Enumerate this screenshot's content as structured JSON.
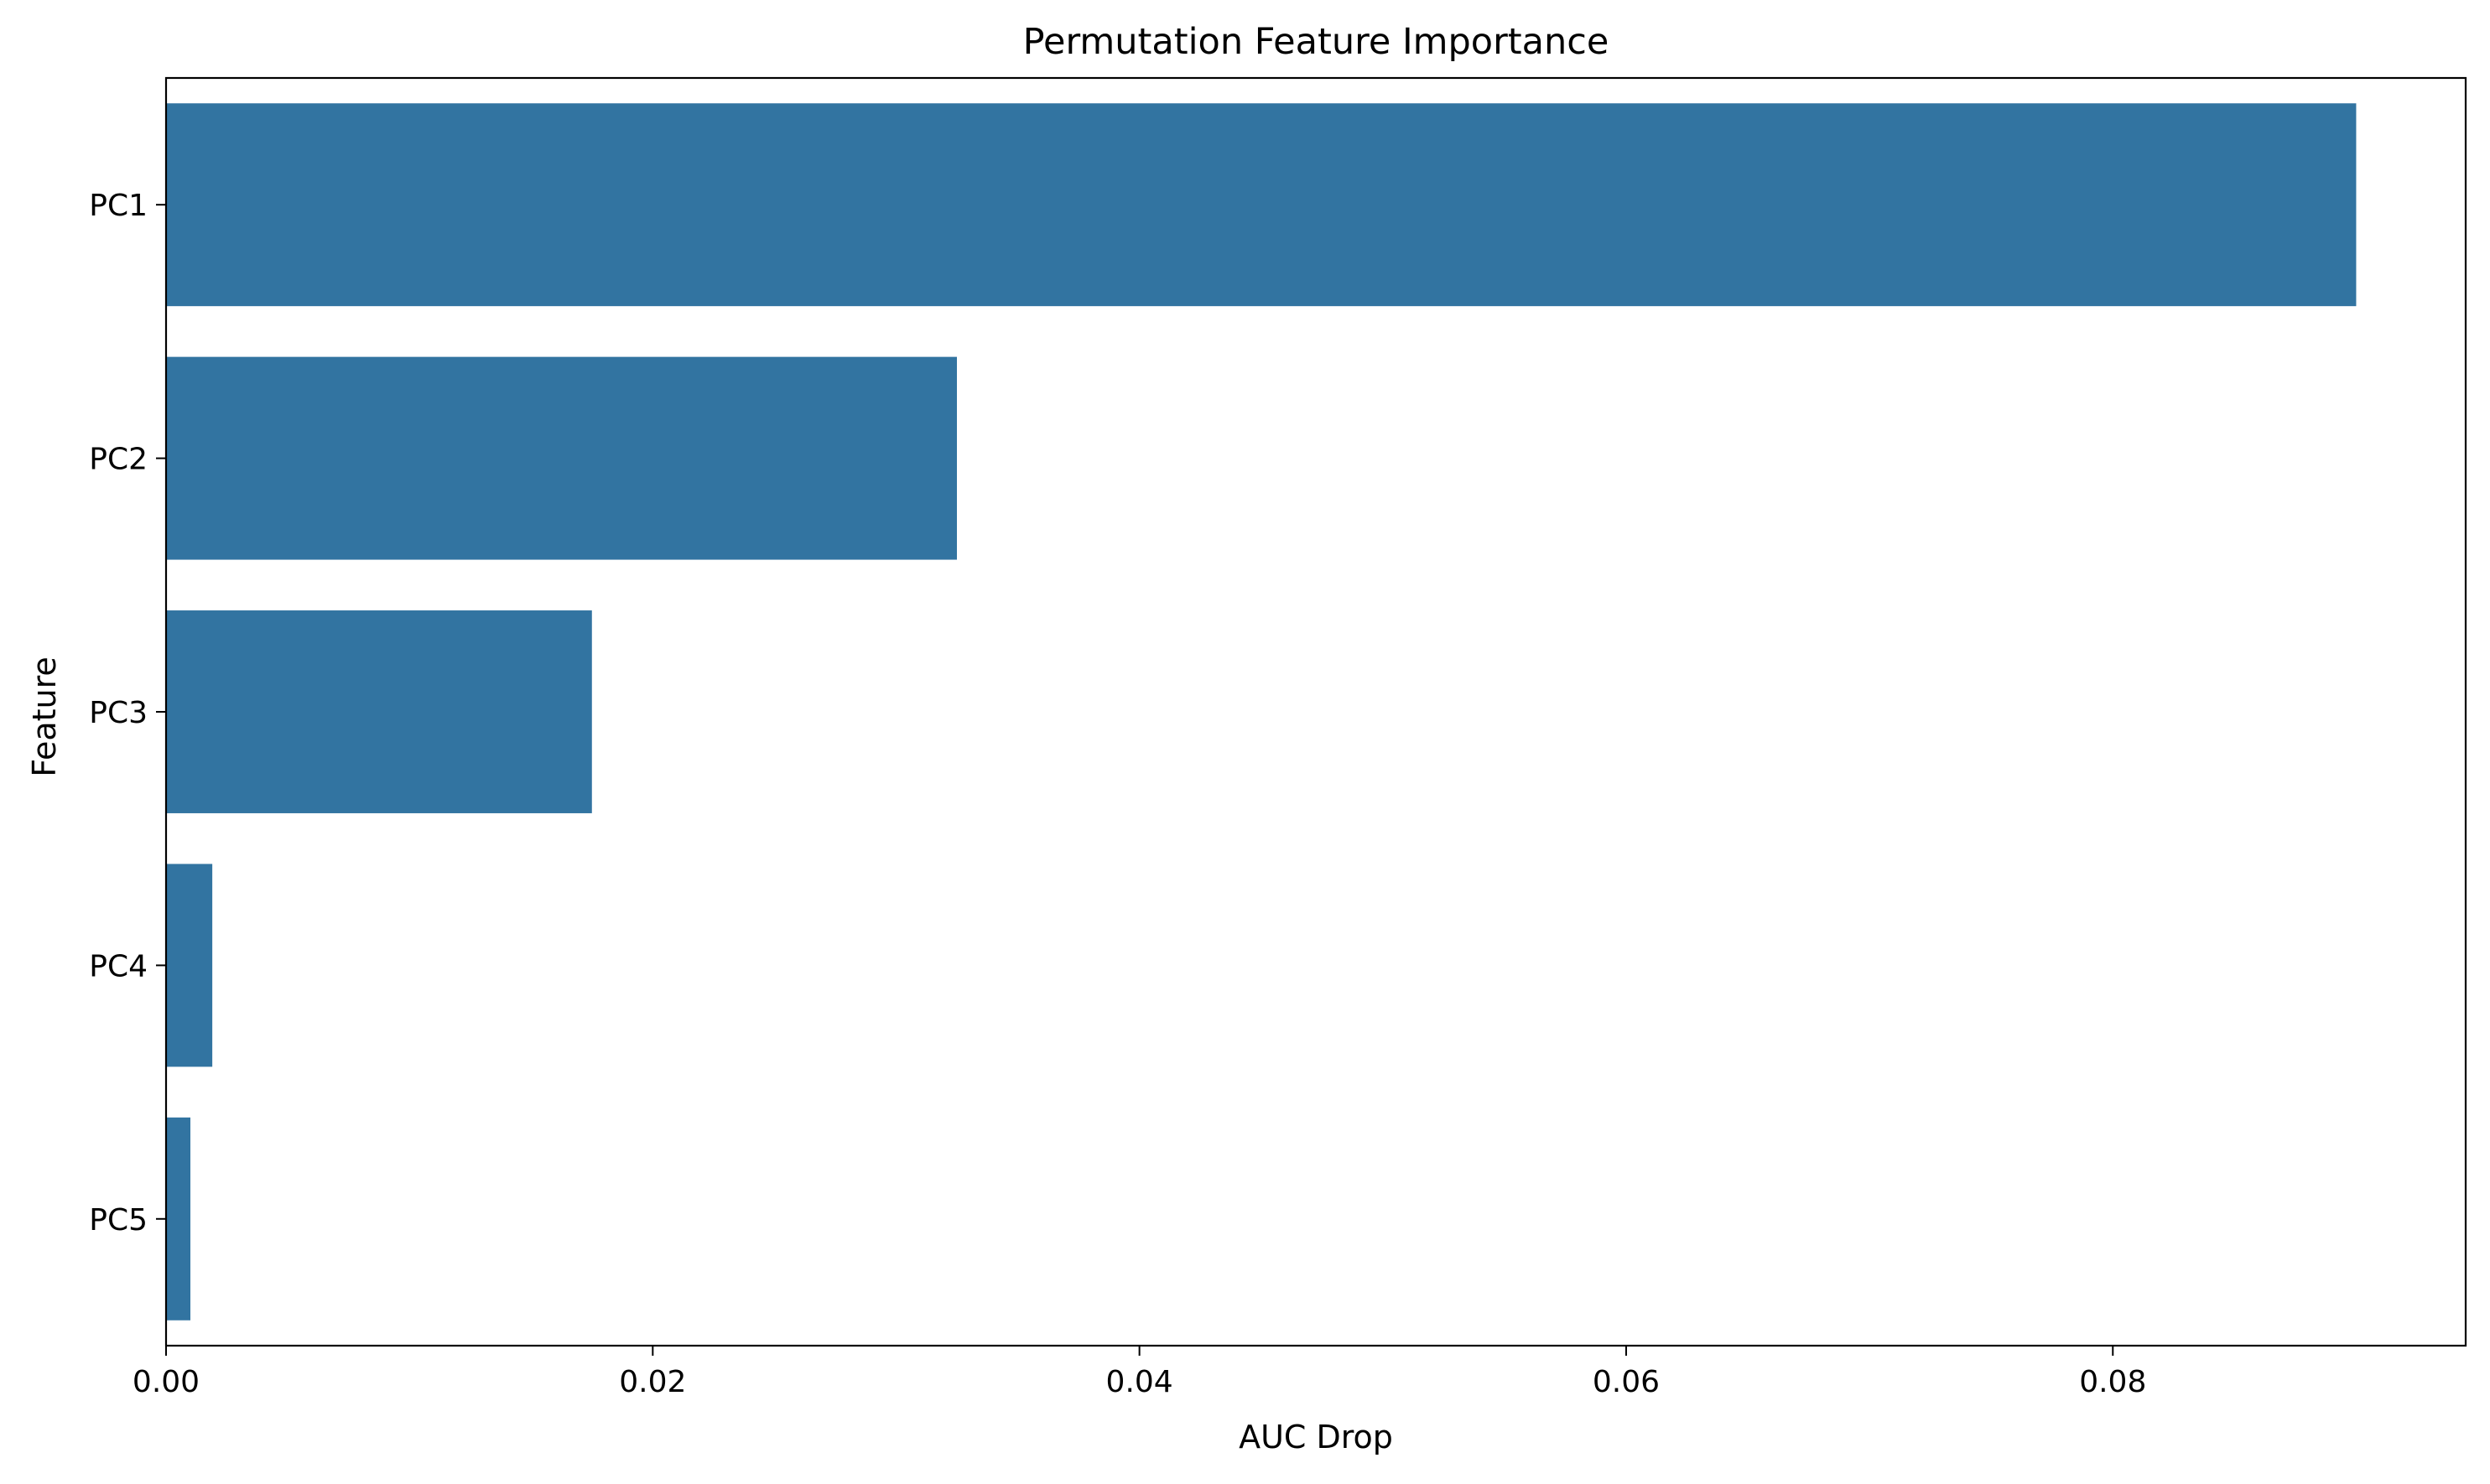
{
  "chart_data": {
    "type": "bar",
    "orientation": "horizontal",
    "title": "Permutation Feature Importance",
    "xlabel": "AUC Drop",
    "ylabel": "Feature",
    "categories": [
      "PC1",
      "PC2",
      "PC3",
      "PC4",
      "PC5"
    ],
    "values": [
      0.09,
      0.0325,
      0.0175,
      0.0019,
      0.001
    ],
    "xlim": [
      0,
      0.0945
    ],
    "xticks": [
      0.0,
      0.02,
      0.04,
      0.06,
      0.08
    ],
    "xtick_labels": [
      "0.00",
      "0.02",
      "0.04",
      "0.06",
      "0.08"
    ],
    "grid": false,
    "legend": "none",
    "bar_color": "#3274a1"
  }
}
